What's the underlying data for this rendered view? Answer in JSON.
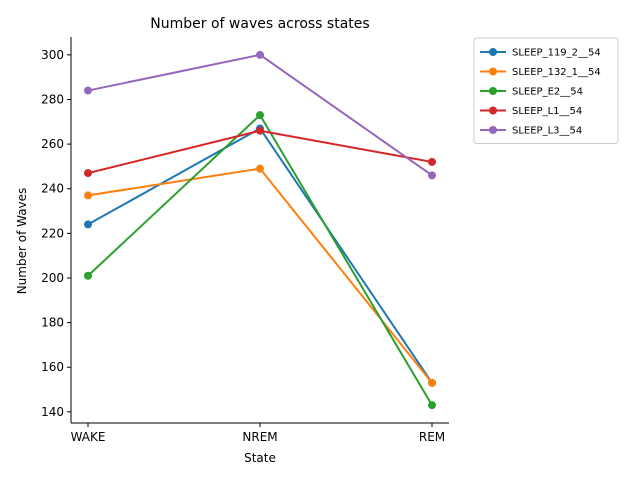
{
  "chart_data": {
    "type": "line",
    "title": "Number of waves across states",
    "xlabel": "State",
    "ylabel": "Number of Waves",
    "categories": [
      "WAKE",
      "NREM",
      "REM"
    ],
    "ylim": [
      135,
      308
    ],
    "yticks": [
      140,
      160,
      180,
      200,
      220,
      240,
      260,
      280,
      300
    ],
    "grid": false,
    "legend_position": "outside-top-right",
    "series": [
      {
        "name": "SLEEP_119_2__54",
        "color": "#1f77b4",
        "values": [
          224,
          267,
          153
        ]
      },
      {
        "name": "SLEEP_132_1__54",
        "color": "#ff7f0e",
        "values": [
          237,
          249,
          153
        ]
      },
      {
        "name": "SLEEP_E2__54",
        "color": "#2ca02c",
        "values": [
          201,
          273,
          143
        ]
      },
      {
        "name": "SLEEP_L1__54",
        "color": "#d62728",
        "values": [
          247,
          266,
          252
        ]
      },
      {
        "name": "SLEEP_L3__54",
        "color": "#9467bd",
        "values": [
          284,
          300,
          246
        ]
      }
    ]
  }
}
